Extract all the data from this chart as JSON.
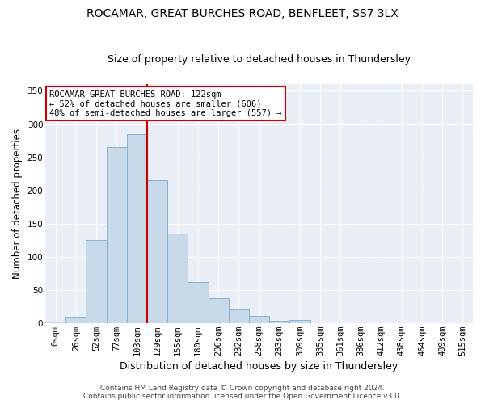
{
  "title1": "ROCAMAR, GREAT BURCHES ROAD, BENFLEET, SS7 3LX",
  "title2": "Size of property relative to detached houses in Thundersley",
  "xlabel": "Distribution of detached houses by size in Thundersley",
  "ylabel": "Number of detached properties",
  "categories": [
    "0sqm",
    "26sqm",
    "52sqm",
    "77sqm",
    "103sqm",
    "129sqm",
    "155sqm",
    "180sqm",
    "206sqm",
    "232sqm",
    "258sqm",
    "283sqm",
    "309sqm",
    "335sqm",
    "361sqm",
    "386sqm",
    "412sqm",
    "438sqm",
    "464sqm",
    "489sqm",
    "515sqm"
  ],
  "values": [
    2,
    10,
    125,
    265,
    285,
    215,
    135,
    62,
    37,
    20,
    11,
    3,
    5,
    0,
    0,
    0,
    0,
    0,
    0,
    0,
    0
  ],
  "bar_color": "#c8d9ea",
  "bar_edge_color": "#7aaac8",
  "vline_color": "#cc0000",
  "annotation_text": "ROCAMAR GREAT BURCHES ROAD: 122sqm\n← 52% of detached houses are smaller (606)\n48% of semi-detached houses are larger (557) →",
  "annotation_box_color": "#ffffff",
  "annotation_box_edge": "#cc0000",
  "ylim": [
    0,
    360
  ],
  "yticks": [
    0,
    50,
    100,
    150,
    200,
    250,
    300,
    350
  ],
  "background_color": "#eaeff7",
  "footer1": "Contains HM Land Registry data © Crown copyright and database right 2024.",
  "footer2": "Contains public sector information licensed under the Open Government Licence v3.0.",
  "title1_fontsize": 10,
  "title2_fontsize": 9,
  "xlabel_fontsize": 9,
  "ylabel_fontsize": 8.5,
  "tick_fontsize": 7.5,
  "footer_fontsize": 6.5,
  "annotation_fontsize": 7.5
}
